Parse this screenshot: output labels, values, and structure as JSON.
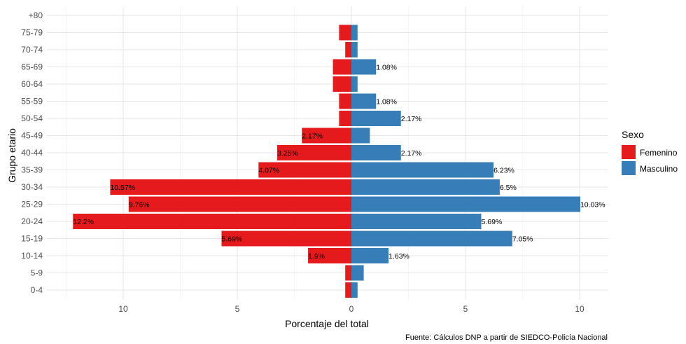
{
  "chart_data": {
    "type": "bar",
    "orientation": "horizontal",
    "layout": "population-pyramid",
    "xlabel": "Porcentaje del total",
    "ylabel": "Grupo etario",
    "x_ticks": [
      10,
      5,
      0,
      5,
      10
    ],
    "xlim": [
      -12.5,
      10.5
    ],
    "grid": true,
    "caption": "Fuente: Cálculos DNP a partir de SIEDCO-Policía Nacional",
    "legend": {
      "title": "Sexo",
      "position": "right"
    },
    "categories": [
      "0-4",
      "5-9",
      "10-14",
      "15-19",
      "20-24",
      "25-29",
      "30-34",
      "35-39",
      "40-44",
      "45-49",
      "50-54",
      "55-59",
      "60-64",
      "65-69",
      "70-74",
      "75-79",
      "+80"
    ],
    "series": [
      {
        "name": "Femenino",
        "color": "#E41A1C",
        "side": "left",
        "values": [
          0.27,
          0.27,
          1.9,
          5.69,
          12.2,
          9.76,
          10.57,
          4.07,
          3.25,
          2.17,
          0.54,
          0.54,
          0.81,
          0.81,
          0.27,
          0.54,
          0
        ],
        "labels": [
          "",
          "",
          "1.9%",
          "5.69%",
          "12.2%",
          "9.76%",
          "10.57%",
          "4.07%",
          "3.25%",
          "2.17%",
          "",
          "",
          "",
          "",
          "",
          "",
          ""
        ]
      },
      {
        "name": "Masculino",
        "color": "#377EB8",
        "side": "right",
        "values": [
          0.27,
          0.54,
          1.63,
          7.05,
          5.69,
          10.03,
          6.5,
          6.23,
          2.17,
          0.81,
          2.17,
          1.08,
          0.27,
          1.08,
          0.27,
          0.27,
          0
        ],
        "labels": [
          "",
          "",
          "1.63%",
          "7.05%",
          "5.69%",
          "10.03%",
          "6.5%",
          "6.23%",
          "2.17%",
          "",
          "2.17%",
          "1.08%",
          "",
          "1.08%",
          "",
          "",
          ""
        ]
      }
    ]
  }
}
